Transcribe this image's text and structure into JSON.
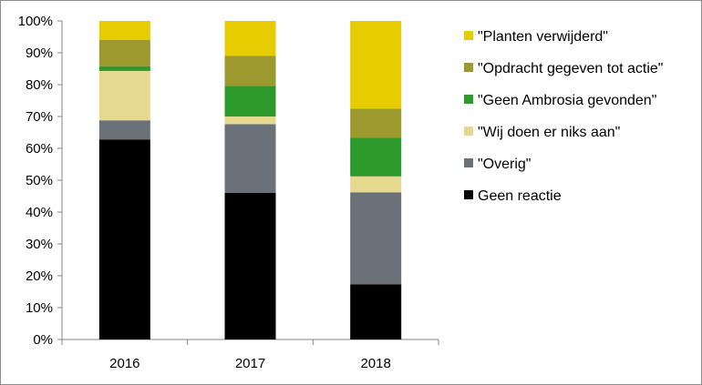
{
  "chart_data": {
    "type": "bar",
    "stacked": true,
    "normalized_percent": true,
    "categories": [
      "2016",
      "2017",
      "2018"
    ],
    "series": [
      {
        "name": "Geen reactie",
        "color": "#000000",
        "values": [
          62.8,
          46.0,
          17.3
        ]
      },
      {
        "name": "\"Overig\"",
        "color": "#6b7178",
        "values": [
          6.0,
          21.6,
          28.9
        ]
      },
      {
        "name": "\"Wij doen er niks aan\"",
        "color": "#e5d98f",
        "values": [
          15.5,
          2.4,
          5.0
        ]
      },
      {
        "name": "\"Geen Ambrosia gevonden\"",
        "color": "#2e9a2e",
        "values": [
          1.5,
          9.6,
          12.1
        ]
      },
      {
        "name": "\"Opdracht gegeven tot actie\"",
        "color": "#9c9a2f",
        "values": [
          8.2,
          9.4,
          9.2
        ]
      },
      {
        "name": "\"Planten verwijderd\"",
        "color": "#e6cc00",
        "values": [
          6.0,
          11.0,
          27.5
        ]
      }
    ],
    "ylim": [
      0,
      100
    ],
    "y_ticks": [
      "0%",
      "10%",
      "20%",
      "30%",
      "40%",
      "50%",
      "60%",
      "70%",
      "80%",
      "90%",
      "100%"
    ],
    "legend_placement": "right",
    "legend_order": [
      "\"Planten verwijderd\"",
      "\"Opdracht gegeven tot actie\"",
      "\"Geen Ambrosia gevonden\"",
      "\"Wij doen er niks aan\"",
      "\"Overig\"",
      "Geen reactie"
    ],
    "grid": false
  }
}
